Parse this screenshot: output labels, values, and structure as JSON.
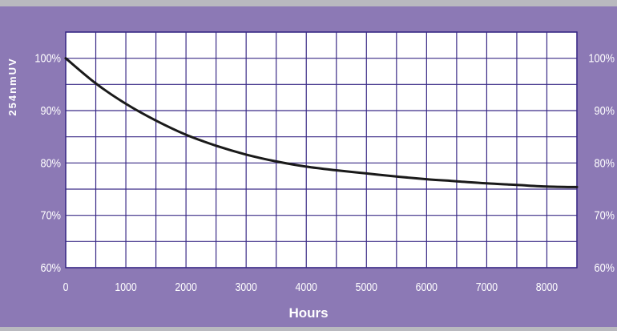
{
  "colors": {
    "top_strip": "#b9b9bf",
    "panel": "#8c79b5",
    "plot_bg": "#ffffff",
    "grid": "#3a2a86",
    "curve": "#1a1a1a",
    "text": "#ffffff"
  },
  "chart_data": {
    "type": "line",
    "title": "",
    "xlabel": "Hours",
    "ylabel": "254nmUV",
    "xlim": [
      0,
      8500
    ],
    "ylim": [
      60,
      105
    ],
    "x_ticks": [
      0,
      1000,
      2000,
      3000,
      4000,
      5000,
      6000,
      7000,
      8000
    ],
    "x_tick_labels": [
      "0",
      "1000",
      "2000",
      "3000",
      "4000",
      "5000",
      "6000",
      "7000",
      "8000"
    ],
    "y_ticks": [
      60,
      70,
      80,
      90,
      100
    ],
    "y_tick_labels": [
      "60%",
      "70%",
      "80%",
      "90%",
      "100%"
    ],
    "right_axis_labels": true,
    "grid": true,
    "series": [
      {
        "x": [
          0,
          500,
          1000,
          1500,
          2000,
          2500,
          3000,
          3500,
          4000,
          4500,
          5000,
          5500,
          6000,
          6500,
          7000,
          7500,
          8000,
          8500
        ],
        "values": [
          100,
          95.2,
          91.3,
          88.1,
          85.4,
          83.3,
          81.6,
          80.3,
          79.3,
          78.6,
          78.0,
          77.4,
          76.9,
          76.5,
          76.1,
          75.8,
          75.5,
          75.4
        ]
      }
    ]
  }
}
